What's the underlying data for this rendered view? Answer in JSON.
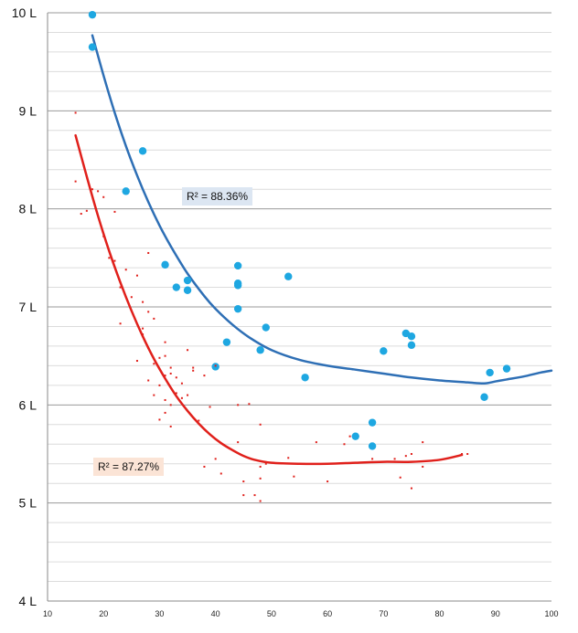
{
  "chart_data": {
    "type": "scatter",
    "x_ticks": [
      10,
      20,
      30,
      40,
      50,
      60,
      70,
      80,
      90,
      100
    ],
    "y_ticks": [
      4,
      5,
      6,
      7,
      8,
      9,
      10
    ],
    "y_tick_labels": [
      "4 L",
      "5 L",
      "6 L",
      "7 L",
      "8 L",
      "9 L",
      "10 L"
    ],
    "xlim": [
      10,
      100
    ],
    "ylim": [
      4,
      10
    ],
    "grid": "horizontal",
    "colors": {
      "blue_points": "#1ea7e1",
      "blue_trend": "#2e6fb5",
      "red_points": "#e0201b",
      "red_trend": "#e0201b"
    },
    "series": [
      {
        "marker": "large-circle",
        "color": "#1ea7e1",
        "points": [
          [
            18,
            9.98
          ],
          [
            18,
            9.65
          ],
          [
            27,
            8.59
          ],
          [
            24,
            8.18
          ],
          [
            31,
            7.43
          ],
          [
            33,
            7.2
          ],
          [
            35,
            7.27
          ],
          [
            35,
            7.17
          ],
          [
            44,
            7.42
          ],
          [
            44,
            7.24
          ],
          [
            44,
            7.22
          ],
          [
            44,
            6.98
          ],
          [
            53,
            7.31
          ],
          [
            42,
            6.64
          ],
          [
            49,
            6.79
          ],
          [
            48,
            6.56
          ],
          [
            40,
            6.39
          ],
          [
            56,
            6.28
          ],
          [
            70,
            6.55
          ],
          [
            74,
            6.73
          ],
          [
            75,
            6.7
          ],
          [
            75,
            6.61
          ],
          [
            68,
            5.82
          ],
          [
            65,
            5.68
          ],
          [
            68,
            5.58
          ],
          [
            89,
            6.33
          ],
          [
            92,
            6.37
          ],
          [
            88,
            6.08
          ]
        ],
        "trendline": {
          "x": [
            18,
            20,
            22,
            24,
            26,
            28,
            30,
            32,
            35,
            38,
            40,
            43,
            46,
            50,
            55,
            60,
            65,
            70,
            75,
            80,
            85,
            88,
            90,
            92,
            95,
            98,
            100
          ],
          "y": [
            9.77,
            9.36,
            8.98,
            8.64,
            8.34,
            8.07,
            7.83,
            7.62,
            7.34,
            7.11,
            6.98,
            6.82,
            6.69,
            6.56,
            6.46,
            6.4,
            6.36,
            6.32,
            6.28,
            6.25,
            6.23,
            6.22,
            6.24,
            6.26,
            6.29,
            6.33,
            6.35
          ]
        },
        "r_squared": "R² = 88.36%"
      },
      {
        "marker": "small-dot",
        "color": "#e0201b",
        "points": [
          [
            15,
            8.98
          ],
          [
            15,
            8.28
          ],
          [
            16,
            7.95
          ],
          [
            17,
            7.98
          ],
          [
            18,
            8.2
          ],
          [
            19,
            8.18
          ],
          [
            20,
            8.12
          ],
          [
            20,
            7.72
          ],
          [
            21,
            7.5
          ],
          [
            22,
            7.97
          ],
          [
            22,
            7.47
          ],
          [
            23,
            7.2
          ],
          [
            23,
            6.83
          ],
          [
            24,
            7.38
          ],
          [
            25,
            7.1
          ],
          [
            26,
            7.32
          ],
          [
            26,
            6.45
          ],
          [
            27,
            7.05
          ],
          [
            27,
            6.78
          ],
          [
            27,
            6.72
          ],
          [
            28,
            7.55
          ],
          [
            28,
            6.95
          ],
          [
            28,
            6.58
          ],
          [
            28,
            6.25
          ],
          [
            29,
            6.88
          ],
          [
            29,
            6.42
          ],
          [
            29,
            6.1
          ],
          [
            30,
            6.48
          ],
          [
            30,
            6.2
          ],
          [
            30,
            5.85
          ],
          [
            31,
            6.64
          ],
          [
            31,
            6.5
          ],
          [
            31,
            6.3
          ],
          [
            31,
            6.05
          ],
          [
            31,
            5.92
          ],
          [
            32,
            6.38
          ],
          [
            32,
            6.32
          ],
          [
            32,
            6.0
          ],
          [
            32,
            5.78
          ],
          [
            33,
            6.28
          ],
          [
            33,
            6.12
          ],
          [
            34,
            6.22
          ],
          [
            34,
            6.07
          ],
          [
            35,
            6.56
          ],
          [
            35,
            6.1
          ],
          [
            36,
            6.38
          ],
          [
            36,
            6.35
          ],
          [
            37,
            5.84
          ],
          [
            38,
            6.3
          ],
          [
            38,
            5.37
          ],
          [
            39,
            5.98
          ],
          [
            40,
            6.4
          ],
          [
            40,
            5.45
          ],
          [
            41,
            5.3
          ],
          [
            44,
            6.0
          ],
          [
            44,
            5.62
          ],
          [
            45,
            5.22
          ],
          [
            45,
            5.08
          ],
          [
            46,
            6.01
          ],
          [
            47,
            5.08
          ],
          [
            48,
            5.8
          ],
          [
            48,
            5.37
          ],
          [
            48,
            5.25
          ],
          [
            48,
            5.02
          ],
          [
            49,
            5.4
          ],
          [
            53,
            5.46
          ],
          [
            54,
            5.27
          ],
          [
            58,
            5.62
          ],
          [
            60,
            5.22
          ],
          [
            63,
            5.6
          ],
          [
            64,
            5.68
          ],
          [
            68,
            5.45
          ],
          [
            72,
            5.45
          ],
          [
            73,
            5.26
          ],
          [
            74,
            5.48
          ],
          [
            75,
            5.5
          ],
          [
            75,
            5.15
          ],
          [
            77,
            5.37
          ],
          [
            77,
            5.62
          ],
          [
            84,
            5.5
          ],
          [
            85,
            5.5
          ]
        ],
        "trendline": {
          "x": [
            15,
            17,
            19,
            21,
            23,
            25,
            27,
            29,
            31,
            33,
            35,
            37,
            39,
            41,
            43,
            45,
            47,
            50,
            55,
            60,
            65,
            70,
            75,
            80,
            84
          ],
          "y": [
            8.75,
            8.33,
            7.93,
            7.57,
            7.25,
            6.96,
            6.7,
            6.47,
            6.27,
            6.09,
            5.94,
            5.81,
            5.7,
            5.61,
            5.54,
            5.48,
            5.44,
            5.41,
            5.4,
            5.4,
            5.41,
            5.42,
            5.42,
            5.44,
            5.49
          ]
        },
        "r_squared": "R² = 87.27%"
      }
    ]
  }
}
